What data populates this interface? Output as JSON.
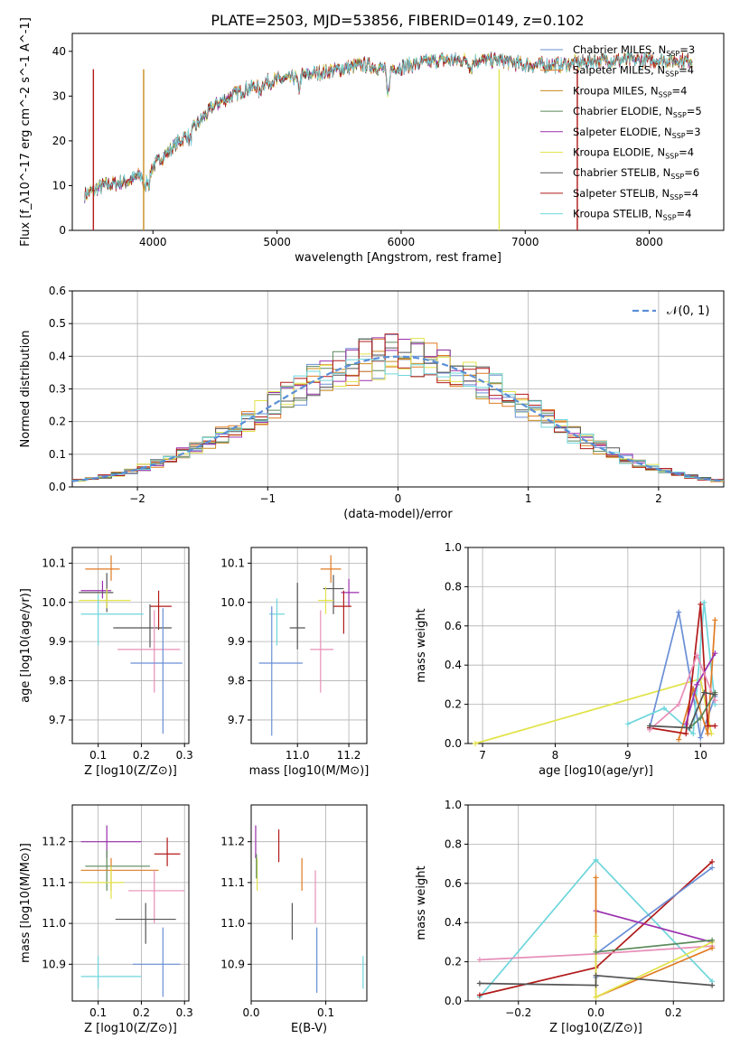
{
  "figure_title": "PLATE=2503, MJD=53856, FIBERID=0149, z=0.102",
  "chart_data": [
    {
      "id": "spectrum",
      "type": "line",
      "xlabel": "wavelength [Angstrom, rest frame]",
      "ylabel": "Flux [f_λ10^-17 erg cm^-2 s^-1 A^-1]",
      "xlim": [
        3350,
        8600
      ],
      "ylim": [
        0,
        44
      ],
      "xticks": [
        "4000",
        "5000",
        "6000",
        "7000",
        "8000"
      ],
      "yticks": [
        "0",
        "10",
        "20",
        "30",
        "40"
      ],
      "grid": false,
      "legend_position": "right",
      "legend": [
        {
          "label": "Chabrier MILES, N_SSP=3",
          "color": "#6a8fd6"
        },
        {
          "label": "Salpeter MILES, N_SSP=4",
          "color": "#e07b22"
        },
        {
          "label": "Kroupa MILES, N_SSP=4",
          "color": "#c98a1e"
        },
        {
          "label": "Chabrier ELODIE, N_SSP=5",
          "color": "#5b8a5b"
        },
        {
          "label": "Salpeter ELODIE, N_SSP=3",
          "color": "#9b2fae"
        },
        {
          "label": "Kroupa ELODIE, N_SSP=4",
          "color": "#e1e34a"
        },
        {
          "label": "Chabrier STELIB, N_SSP=6",
          "color": "#555555"
        },
        {
          "label": "Salpeter STELIB, N_SSP=4",
          "color": "#b21a1a"
        },
        {
          "label": "Kroupa STELIB, N_SSP=4",
          "color": "#6fd6dc"
        }
      ],
      "continuum": [
        [
          3450,
          8
        ],
        [
          3600,
          10
        ],
        [
          3800,
          11
        ],
        [
          3950,
          13
        ],
        [
          4100,
          17
        ],
        [
          4300,
          22
        ],
        [
          4500,
          28
        ],
        [
          4700,
          31
        ],
        [
          4900,
          33
        ],
        [
          5100,
          34
        ],
        [
          5300,
          35
        ],
        [
          5500,
          36
        ],
        [
          5700,
          37
        ],
        [
          5900,
          36
        ],
        [
          6100,
          37
        ],
        [
          6300,
          38
        ],
        [
          6500,
          38
        ],
        [
          6800,
          38
        ],
        [
          7000,
          37
        ],
        [
          7300,
          37
        ],
        [
          7600,
          38
        ],
        [
          7900,
          38
        ],
        [
          8200,
          38
        ],
        [
          8350,
          38
        ]
      ]
    },
    {
      "id": "residual-histogram",
      "type": "histogram",
      "xlabel": "(data-model)/error",
      "ylabel": "Normed distribution",
      "xlim": [
        -2.5,
        2.5
      ],
      "ylim": [
        0,
        0.6
      ],
      "xticks": [
        "−2",
        "−1",
        "0",
        "1",
        "2"
      ],
      "yticks": [
        "0.0",
        "0.1",
        "0.2",
        "0.3",
        "0.4",
        "0.5",
        "0.6"
      ],
      "grid": true,
      "legend_position": "top-right",
      "legend_label": "𝒩(0, 1)",
      "legend_color": "#5a8fd6",
      "bin_width": 0.1
    },
    {
      "id": "age-vs-metallicity",
      "type": "errorbar",
      "xlabel": "Z [log10(Z/Z⊙)]",
      "ylabel": "age  [log10(age/yr)]",
      "xlim": [
        0.04,
        0.31
      ],
      "ylim": [
        9.64,
        10.14
      ],
      "xticks": [
        "0.1",
        "0.2",
        "0.3"
      ],
      "yticks": [
        "9.7",
        "9.8",
        "9.9",
        "10.0",
        "10.1"
      ],
      "grid": true,
      "points": [
        {
          "color": "#e07b22",
          "x": 0.13,
          "y": 10.085,
          "xerr": [
            0.07,
            0.15
          ],
          "yerr": [
            0.03,
            0.035
          ]
        },
        {
          "color": "#9b2fae",
          "x": 0.11,
          "y": 10.03,
          "xerr": [
            0.06,
            0.13
          ],
          "yerr": [
            0.02,
            0.025
          ]
        },
        {
          "color": "#555555",
          "x": 0.12,
          "y": 10.025,
          "xerr": [
            0.055,
            0.135
          ],
          "yerr": [
            0.05,
            0.05
          ]
        },
        {
          "color": "#e1e34a",
          "x": 0.12,
          "y": 10.005,
          "xerr": [
            0.055,
            0.175
          ],
          "yerr": [
            0.02,
            0.03
          ]
        },
        {
          "color": "#b21a1a",
          "x": 0.24,
          "y": 9.99,
          "xerr": [
            0.22,
            0.27
          ],
          "yerr": [
            0.06,
            0.04
          ]
        },
        {
          "color": "#6fd6dc",
          "x": 0.1,
          "y": 9.97,
          "xerr": [
            0.06,
            0.205
          ],
          "yerr": [
            0.08,
            0.05
          ]
        },
        {
          "color": "#555555",
          "x": 0.22,
          "y": 9.935,
          "xerr": [
            0.135,
            0.27
          ],
          "yerr": [
            0.05,
            0.06
          ]
        },
        {
          "color": "#e78fb8",
          "x": 0.23,
          "y": 9.88,
          "xerr": [
            0.145,
            0.29
          ],
          "yerr": [
            0.11,
            0.1
          ]
        },
        {
          "color": "#6a8fd6",
          "x": 0.25,
          "y": 9.845,
          "xerr": [
            0.175,
            0.295
          ],
          "yerr": [
            0.18,
            0.14
          ]
        }
      ]
    },
    {
      "id": "age-vs-mass",
      "type": "errorbar",
      "xlabel": "mass [log10(M/M⊙)]",
      "ylabel": "",
      "xlim": [
        10.82,
        11.27
      ],
      "ylim": [
        9.64,
        10.14
      ],
      "xticks": [
        "11.0",
        "11.2"
      ],
      "yticks": [
        "9.7",
        "9.8",
        "9.9",
        "10.0",
        "10.1"
      ],
      "grid": true,
      "points": [
        {
          "color": "#e07b22",
          "x": 11.13,
          "y": 10.085,
          "xerr": [
            11.09,
            11.17
          ],
          "yerr": [
            10.05,
            10.12
          ]
        },
        {
          "color": "#9b2fae",
          "x": 11.2,
          "y": 10.025,
          "xerr": [
            11.17,
            11.24
          ],
          "yerr": [
            9.99,
            10.06
          ]
        },
        {
          "color": "#555555",
          "x": 11.14,
          "y": 10.035,
          "xerr": [
            11.1,
            11.18
          ],
          "yerr": [
            9.97,
            10.07
          ]
        },
        {
          "color": "#e1e34a",
          "x": 11.11,
          "y": 10.005,
          "xerr": [
            11.08,
            11.14
          ],
          "yerr": [
            9.97,
            10.04
          ]
        },
        {
          "color": "#b21a1a",
          "x": 11.18,
          "y": 9.99,
          "xerr": [
            11.14,
            11.21
          ],
          "yerr": [
            9.92,
            10.03
          ]
        },
        {
          "color": "#6fd6dc",
          "x": 10.92,
          "y": 9.97,
          "xerr": [
            10.89,
            10.95
          ],
          "yerr": [
            9.89,
            10.01
          ]
        },
        {
          "color": "#555555",
          "x": 11.0,
          "y": 9.935,
          "xerr": [
            10.97,
            11.03
          ],
          "yerr": [
            9.88,
            10.05
          ]
        },
        {
          "color": "#e78fb8",
          "x": 11.09,
          "y": 9.88,
          "xerr": [
            11.05,
            11.14
          ],
          "yerr": [
            9.77,
            9.98
          ]
        },
        {
          "color": "#6a8fd6",
          "x": 10.9,
          "y": 9.845,
          "xerr": [
            10.85,
            11.02
          ],
          "yerr": [
            9.66,
            9.99
          ]
        }
      ]
    },
    {
      "id": "weight-vs-age",
      "type": "line",
      "xlabel": "age  [log10(age/yr)]",
      "ylabel": "mass weight",
      "xlim": [
        6.8,
        10.32
      ],
      "ylim": [
        0,
        1
      ],
      "xticks": [
        "7",
        "8",
        "9",
        "10"
      ],
      "yticks": [
        "0.0",
        "0.2",
        "0.4",
        "0.6",
        "0.8",
        "1.0"
      ],
      "grid": true,
      "series": [
        {
          "color": "#e1e34a",
          "x": [
            6.9,
            10.0,
            10.15
          ],
          "y": [
            0.0,
            0.33,
            0.05
          ]
        },
        {
          "color": "#6a8fd6",
          "x": [
            9.3,
            9.7,
            10.0,
            10.2
          ],
          "y": [
            0.08,
            0.67,
            0.03,
            0.24
          ]
        },
        {
          "color": "#6fd6dc",
          "x": [
            9.0,
            9.5,
            9.9,
            10.05,
            10.2
          ],
          "y": [
            0.1,
            0.18,
            0.05,
            0.72,
            0.2
          ]
        },
        {
          "color": "#e07b22",
          "x": [
            9.7,
            9.9,
            10.1,
            10.2
          ],
          "y": [
            0.02,
            0.28,
            0.05,
            0.63
          ]
        },
        {
          "color": "#b21a1a",
          "x": [
            9.3,
            9.8,
            10.0,
            10.1,
            10.2
          ],
          "y": [
            0.08,
            0.05,
            0.71,
            0.09,
            0.09
          ]
        },
        {
          "color": "#9b2fae",
          "x": [
            9.8,
            9.95,
            10.2
          ],
          "y": [
            0.1,
            0.3,
            0.46
          ]
        },
        {
          "color": "#e78fb8",
          "x": [
            9.3,
            9.7,
            9.95,
            10.2
          ],
          "y": [
            0.07,
            0.2,
            0.45,
            0.22
          ]
        },
        {
          "color": "#5b8a5b",
          "x": [
            9.85,
            10.0,
            10.2
          ],
          "y": [
            0.08,
            0.13,
            0.26
          ]
        },
        {
          "color": "#555555",
          "x": [
            9.3,
            9.85,
            10.05,
            10.2
          ],
          "y": [
            0.09,
            0.08,
            0.26,
            0.25
          ]
        }
      ]
    },
    {
      "id": "mass-vs-metallicity",
      "type": "errorbar",
      "xlabel": "Z [log10(Z/Z⊙)]",
      "ylabel": "mass [log10(M/M⊙)]",
      "xlim": [
        0.04,
        0.31
      ],
      "ylim": [
        10.81,
        11.29
      ],
      "xticks": [
        "0.1",
        "0.2",
        "0.3"
      ],
      "yticks": [
        "10.9",
        "11.0",
        "11.1",
        "11.2"
      ],
      "grid": true,
      "points": [
        {
          "color": "#9b2fae",
          "x": 0.12,
          "y": 11.2,
          "xerr": [
            0.06,
            0.2
          ],
          "yerr": [
            11.16,
            11.24
          ]
        },
        {
          "color": "#b21a1a",
          "x": 0.26,
          "y": 11.17,
          "xerr": [
            0.23,
            0.29
          ],
          "yerr": [
            11.14,
            11.21
          ]
        },
        {
          "color": "#5b8a5b",
          "x": 0.12,
          "y": 11.14,
          "xerr": [
            0.07,
            0.22
          ],
          "yerr": [
            11.08,
            11.18
          ]
        },
        {
          "color": "#e07b22",
          "x": 0.13,
          "y": 11.13,
          "xerr": [
            0.06,
            0.24
          ],
          "yerr": [
            11.08,
            11.16
          ]
        },
        {
          "color": "#e1e34a",
          "x": 0.13,
          "y": 11.1,
          "xerr": [
            0.06,
            0.16
          ],
          "yerr": [
            11.06,
            11.14
          ]
        },
        {
          "color": "#e78fb8",
          "x": 0.23,
          "y": 11.08,
          "xerr": [
            0.17,
            0.3
          ],
          "yerr": [
            11.0,
            11.13
          ]
        },
        {
          "color": "#555555",
          "x": 0.21,
          "y": 11.01,
          "xerr": [
            0.14,
            0.28
          ],
          "yerr": [
            10.95,
            11.05
          ]
        },
        {
          "color": "#6a8fd6",
          "x": 0.25,
          "y": 10.9,
          "xerr": [
            0.18,
            0.29
          ],
          "yerr": [
            10.82,
            10.99
          ]
        },
        {
          "color": "#6fd6dc",
          "x": 0.1,
          "y": 10.87,
          "xerr": [
            0.06,
            0.2
          ],
          "yerr": [
            10.84,
            10.92
          ]
        }
      ]
    },
    {
      "id": "mass-vs-extinction",
      "type": "errorbar",
      "xlabel": "E(B-V)",
      "ylabel": "",
      "xlim": [
        0.0,
        0.155
      ],
      "ylim": [
        10.81,
        11.29
      ],
      "xticks": [
        "0.0",
        "0.1"
      ],
      "yticks": [
        "10.9",
        "11.0",
        "11.1",
        "11.2"
      ],
      "grid": true,
      "points": [
        {
          "color": "#9b2fae",
          "x": 0.006,
          "y": 11.2,
          "yerr": [
            11.16,
            11.24
          ]
        },
        {
          "color": "#e1e34a",
          "x": 0.008,
          "y": 11.13,
          "yerr": [
            11.08,
            11.16
          ]
        },
        {
          "color": "#5b8a5b",
          "x": 0.007,
          "y": 11.15,
          "yerr": [
            11.11,
            11.17
          ]
        },
        {
          "color": "#b21a1a",
          "x": 0.037,
          "y": 11.19,
          "yerr": [
            11.15,
            11.23
          ]
        },
        {
          "color": "#e07b22",
          "x": 0.068,
          "y": 11.12,
          "yerr": [
            11.08,
            11.16
          ]
        },
        {
          "color": "#555555",
          "x": 0.055,
          "y": 11.01,
          "yerr": [
            10.96,
            11.05
          ]
        },
        {
          "color": "#e78fb8",
          "x": 0.086,
          "y": 11.05,
          "yerr": [
            11.0,
            11.13
          ]
        },
        {
          "color": "#6a8fd6",
          "x": 0.088,
          "y": 10.9,
          "yerr": [
            10.83,
            10.99
          ]
        },
        {
          "color": "#6fd6dc",
          "x": 0.15,
          "y": 10.87,
          "yerr": [
            10.84,
            10.92
          ]
        }
      ]
    },
    {
      "id": "weight-vs-metallicity",
      "type": "line",
      "xlabel": "Z [log10(Z/Z⊙)]",
      "ylabel": "mass weight",
      "xlim": [
        -0.33,
        0.33
      ],
      "ylim": [
        0,
        1
      ],
      "xticks": [
        "−0.2",
        "0.0",
        "0.2"
      ],
      "yticks": [
        "0.0",
        "0.2",
        "0.4",
        "0.6",
        "0.8",
        "1.0"
      ],
      "grid": true,
      "series": [
        {
          "color": "#6fd6dc",
          "x": [
            -0.3,
            0.0,
            0.3
          ],
          "y": [
            0.02,
            0.72,
            0.1
          ]
        },
        {
          "color": "#b21a1a",
          "x": [
            -0.3,
            0.0,
            0.3
          ],
          "y": [
            0.03,
            0.17,
            0.71
          ]
        },
        {
          "color": "#6a8fd6",
          "x": [
            0.0,
            0.0,
            0.3
          ],
          "y": [
            0.12,
            0.24,
            0.68
          ]
        },
        {
          "color": "#9b2fae",
          "x": [
            0.0,
            0.3
          ],
          "y": [
            0.46,
            0.3
          ]
        },
        {
          "color": "#e78fb8",
          "x": [
            -0.3,
            0.0,
            0.3
          ],
          "y": [
            0.21,
            0.24,
            0.28
          ]
        },
        {
          "color": "#e07b22",
          "x": [
            0.0,
            0.0,
            0.3
          ],
          "y": [
            0.63,
            0.02,
            0.27
          ]
        },
        {
          "color": "#e1e34a",
          "x": [
            0.0,
            0.0,
            0.3
          ],
          "y": [
            0.33,
            0.02,
            0.3
          ]
        },
        {
          "color": "#5b8a5b",
          "x": [
            0.0,
            0.3
          ],
          "y": [
            0.25,
            0.31
          ]
        },
        {
          "color": "#555555",
          "x": [
            -0.3,
            0.0,
            0.0,
            0.3
          ],
          "y": [
            0.09,
            0.08,
            0.13,
            0.08
          ]
        }
      ]
    }
  ]
}
